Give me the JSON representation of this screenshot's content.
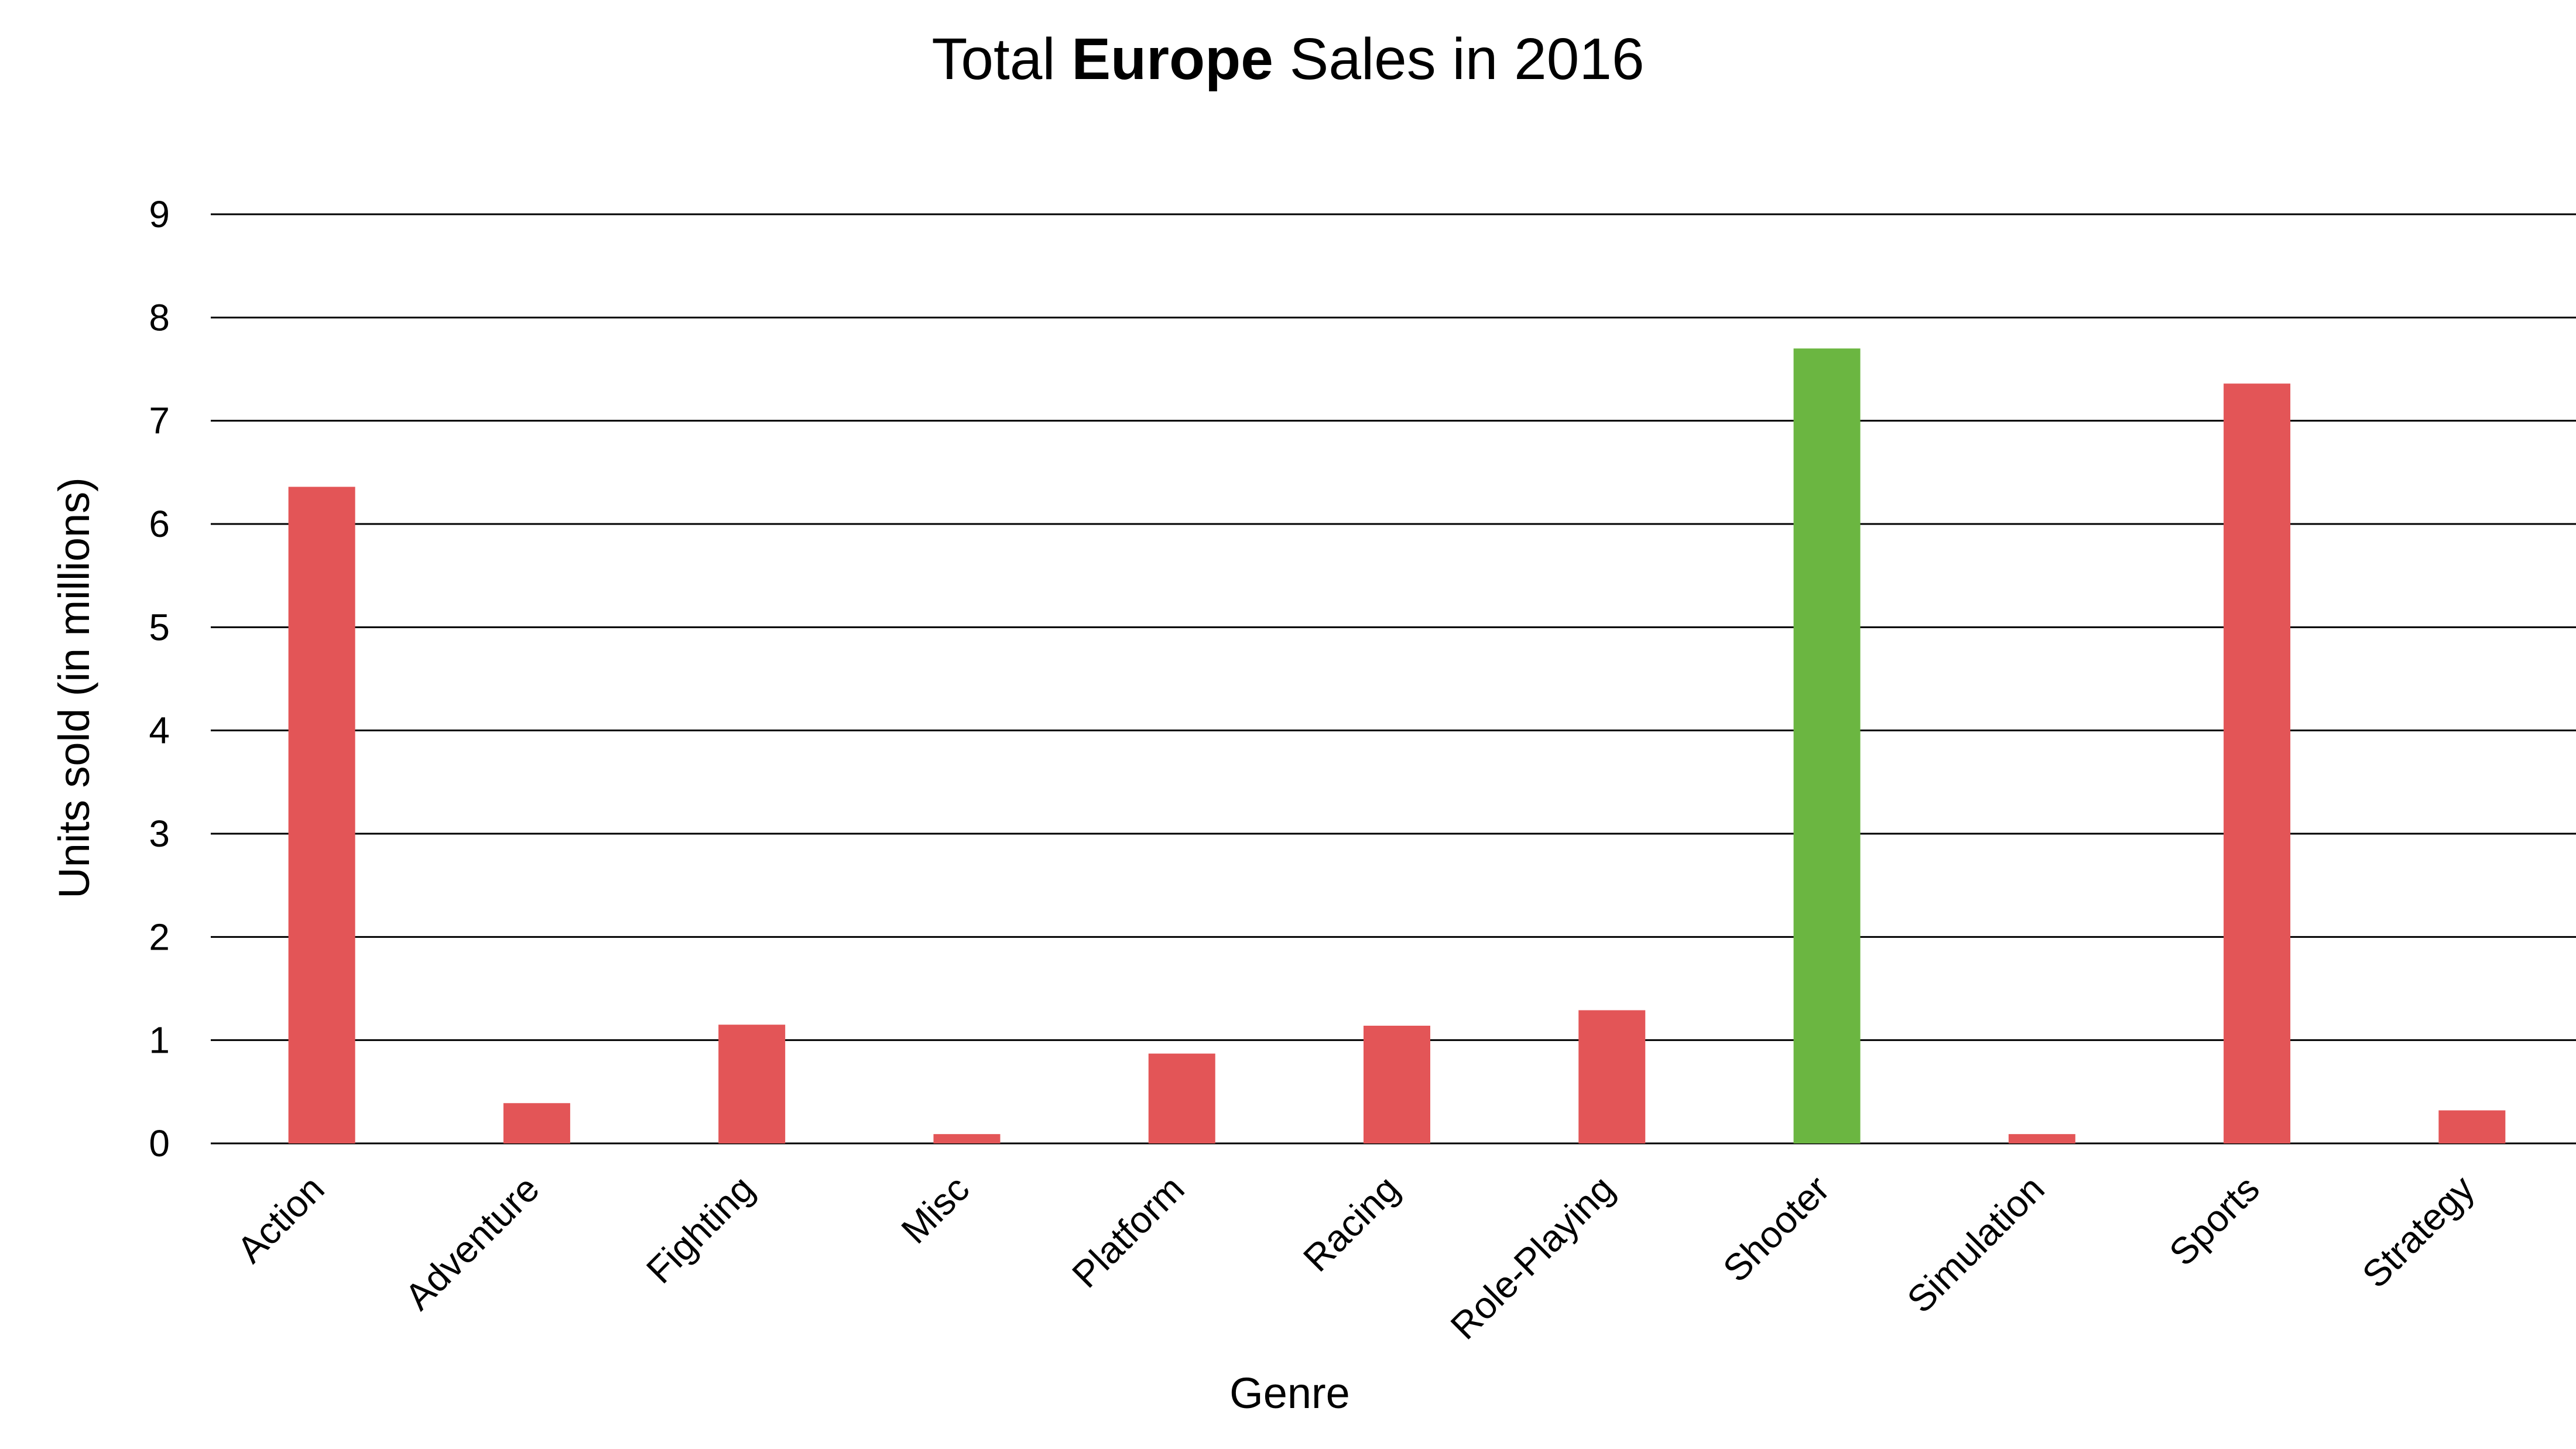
{
  "chart_data": {
    "type": "bar",
    "title": {
      "prefix": "Total ",
      "emphasis": "Europe",
      "suffix": " Sales in 2016"
    },
    "xlabel": "Genre",
    "ylabel": "Units sold (in millions)",
    "ylim": [
      0,
      9
    ],
    "yticks": [
      "0",
      "1",
      "2",
      "3",
      "4",
      "5",
      "6",
      "7",
      "8",
      "9"
    ],
    "grid": true,
    "categories": [
      "Action",
      "Adventure",
      "Fighting",
      "Misc",
      "Platform",
      "Racing",
      "Role-Playing",
      "Shooter",
      "Simulation",
      "Sports",
      "Strategy"
    ],
    "values": [
      6.36,
      0.39,
      1.15,
      0.09,
      0.87,
      1.14,
      1.29,
      7.7,
      0.09,
      7.36,
      0.32
    ],
    "colors": {
      "default": "#e35557",
      "highlight": "#6bb641"
    },
    "highlight_category": "Shooter"
  }
}
